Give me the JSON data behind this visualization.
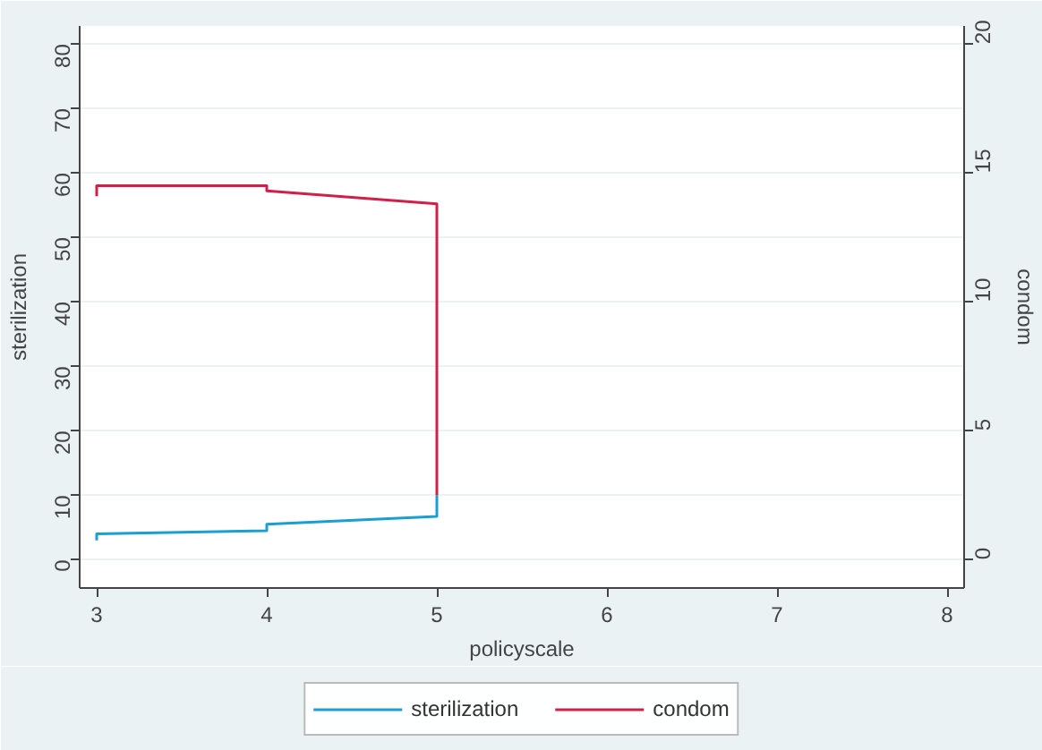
{
  "chart_data": {
    "type": "line",
    "xlabel": "policyscale",
    "ylabel": "sterilization",
    "y2label": "condom",
    "xlim": [
      2.9,
      8.1
    ],
    "xticks": [
      3,
      4,
      5,
      6,
      7,
      8
    ],
    "ylim": [
      -4.4,
      82.8
    ],
    "yticks": [
      0,
      10,
      20,
      30,
      40,
      50,
      60,
      70,
      80
    ],
    "y2lim": [
      -1.1,
      20.7
    ],
    "y2ticks": [
      0,
      5,
      10,
      15,
      20
    ],
    "grid": "y",
    "legend": "bottom",
    "series": [
      {
        "name": "sterilization",
        "color": "#1a9fd0",
        "x": [
          3,
          3,
          4,
          4,
          5,
          5
        ],
        "values": [
          3,
          4,
          4.5,
          5.5,
          6.7,
          10
        ]
      },
      {
        "name": "condom",
        "color": "#d0204a",
        "axis": "y2",
        "x": [
          3,
          3,
          4,
          4,
          5,
          5
        ],
        "values": [
          14.1,
          14.5,
          14.5,
          14.3,
          13.8,
          2.5
        ]
      }
    ]
  }
}
